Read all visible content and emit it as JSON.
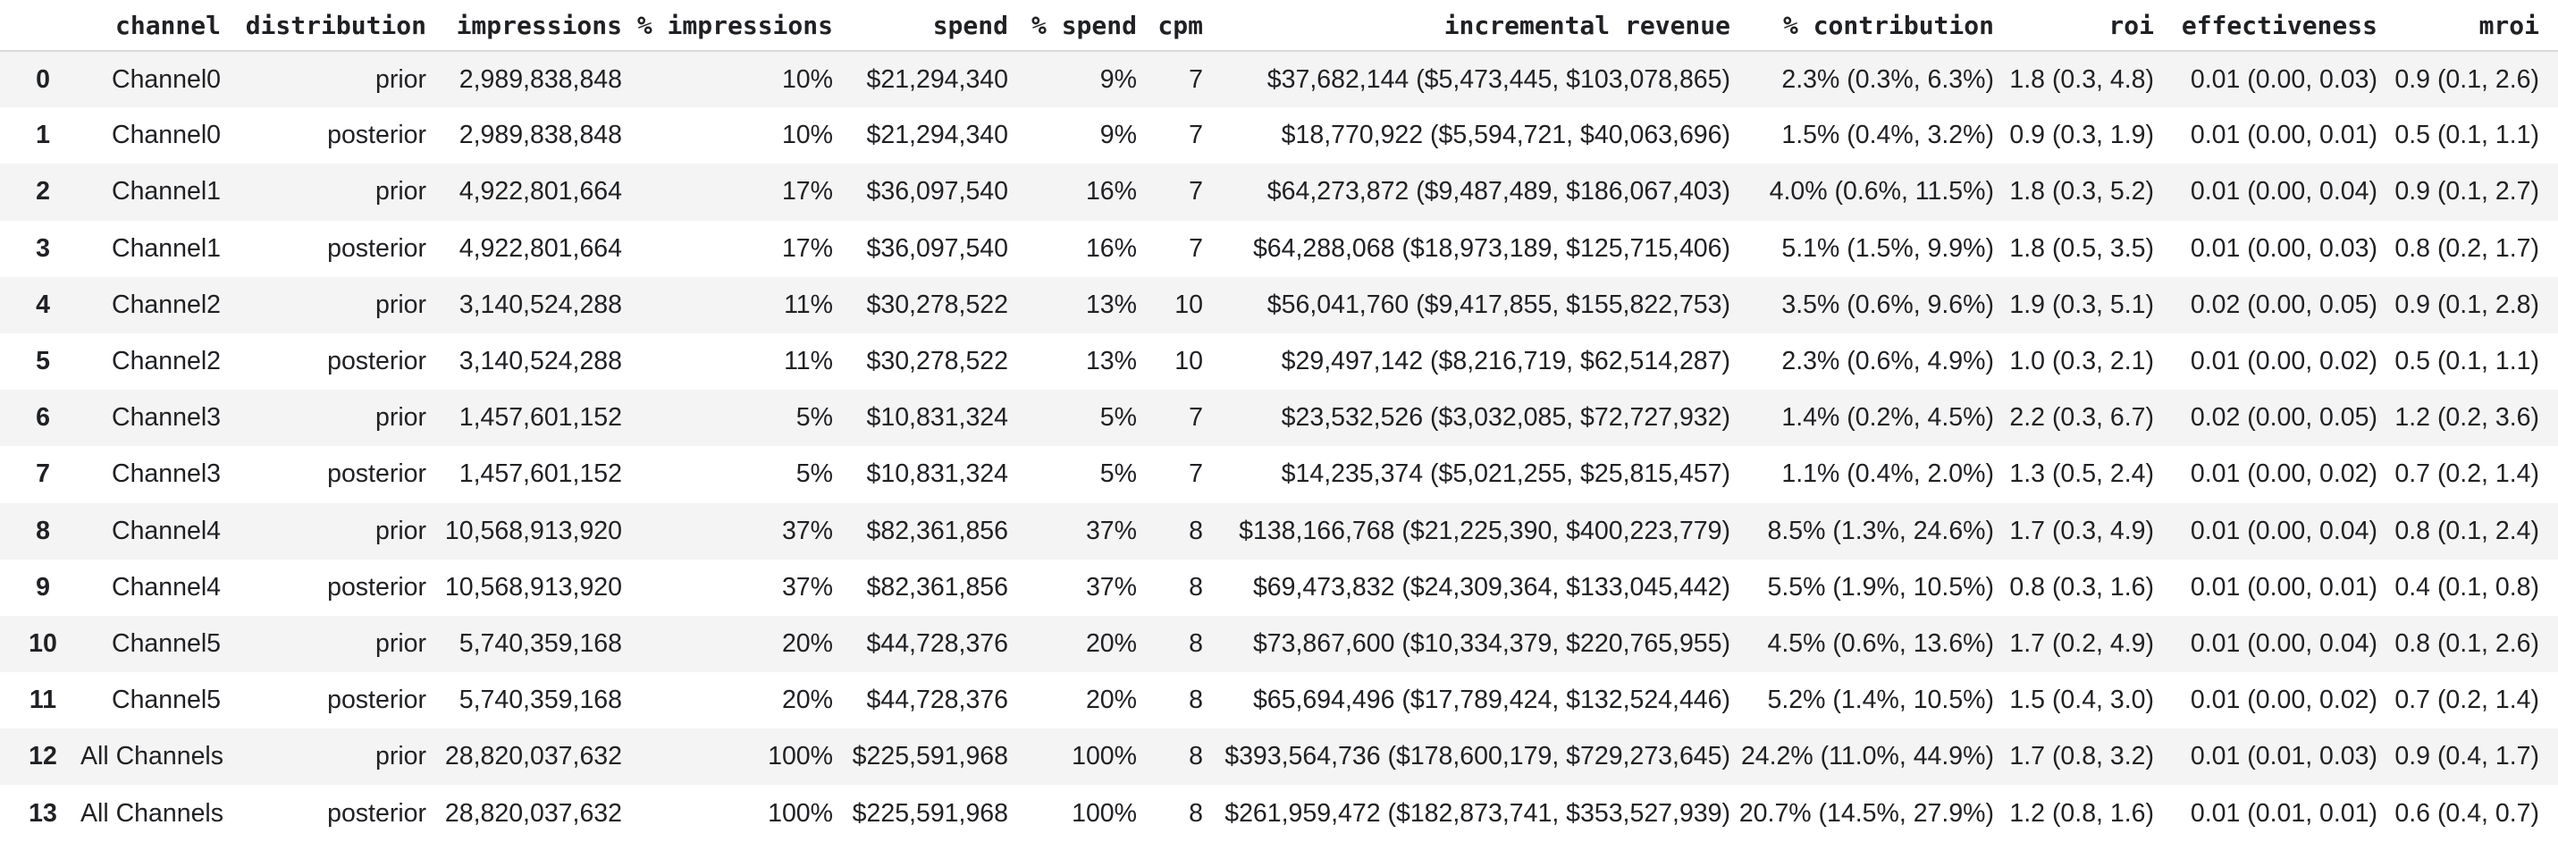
{
  "colors": {
    "stripe": "#f4f4f4",
    "header_border": "#d9d9d9",
    "text": "#202124",
    "background": "#ffffff"
  },
  "table": {
    "index_header": "",
    "column_keys": [
      "channel",
      "distribution",
      "impressions",
      "pct-impressions",
      "spend",
      "pct-spend",
      "cpm",
      "incremental-revenue",
      "pct-contribution",
      "roi",
      "effectiveness",
      "mroi"
    ],
    "columns": [
      "channel",
      "distribution",
      "impressions",
      "% impressions",
      "spend",
      "% spend",
      "cpm",
      "incremental revenue",
      "% contribution",
      "roi",
      "effectiveness",
      "mroi"
    ],
    "rows": [
      {
        "index": "0",
        "cells": [
          "Channel0",
          "prior",
          "2,989,838,848",
          "10%",
          "$21,294,340",
          "9%",
          "7",
          "$37,682,144 ($5,473,445, $103,078,865)",
          "2.3% (0.3%, 6.3%)",
          "1.8 (0.3, 4.8)",
          "0.01 (0.00, 0.03)",
          "0.9 (0.1, 2.6)"
        ]
      },
      {
        "index": "1",
        "cells": [
          "Channel0",
          "posterior",
          "2,989,838,848",
          "10%",
          "$21,294,340",
          "9%",
          "7",
          "$18,770,922 ($5,594,721, $40,063,696)",
          "1.5% (0.4%, 3.2%)",
          "0.9 (0.3, 1.9)",
          "0.01 (0.00, 0.01)",
          "0.5 (0.1, 1.1)"
        ]
      },
      {
        "index": "2",
        "cells": [
          "Channel1",
          "prior",
          "4,922,801,664",
          "17%",
          "$36,097,540",
          "16%",
          "7",
          "$64,273,872 ($9,487,489, $186,067,403)",
          "4.0% (0.6%, 11.5%)",
          "1.8 (0.3, 5.2)",
          "0.01 (0.00, 0.04)",
          "0.9 (0.1, 2.7)"
        ]
      },
      {
        "index": "3",
        "cells": [
          "Channel1",
          "posterior",
          "4,922,801,664",
          "17%",
          "$36,097,540",
          "16%",
          "7",
          "$64,288,068 ($18,973,189, $125,715,406)",
          "5.1% (1.5%, 9.9%)",
          "1.8 (0.5, 3.5)",
          "0.01 (0.00, 0.03)",
          "0.8 (0.2, 1.7)"
        ]
      },
      {
        "index": "4",
        "cells": [
          "Channel2",
          "prior",
          "3,140,524,288",
          "11%",
          "$30,278,522",
          "13%",
          "10",
          "$56,041,760 ($9,417,855, $155,822,753)",
          "3.5% (0.6%, 9.6%)",
          "1.9 (0.3, 5.1)",
          "0.02 (0.00, 0.05)",
          "0.9 (0.1, 2.8)"
        ]
      },
      {
        "index": "5",
        "cells": [
          "Channel2",
          "posterior",
          "3,140,524,288",
          "11%",
          "$30,278,522",
          "13%",
          "10",
          "$29,497,142 ($8,216,719, $62,514,287)",
          "2.3% (0.6%, 4.9%)",
          "1.0 (0.3, 2.1)",
          "0.01 (0.00, 0.02)",
          "0.5 (0.1, 1.1)"
        ]
      },
      {
        "index": "6",
        "cells": [
          "Channel3",
          "prior",
          "1,457,601,152",
          "5%",
          "$10,831,324",
          "5%",
          "7",
          "$23,532,526 ($3,032,085, $72,727,932)",
          "1.4% (0.2%, 4.5%)",
          "2.2 (0.3, 6.7)",
          "0.02 (0.00, 0.05)",
          "1.2 (0.2, 3.6)"
        ]
      },
      {
        "index": "7",
        "cells": [
          "Channel3",
          "posterior",
          "1,457,601,152",
          "5%",
          "$10,831,324",
          "5%",
          "7",
          "$14,235,374 ($5,021,255, $25,815,457)",
          "1.1% (0.4%, 2.0%)",
          "1.3 (0.5, 2.4)",
          "0.01 (0.00, 0.02)",
          "0.7 (0.2, 1.4)"
        ]
      },
      {
        "index": "8",
        "cells": [
          "Channel4",
          "prior",
          "10,568,913,920",
          "37%",
          "$82,361,856",
          "37%",
          "8",
          "$138,166,768 ($21,225,390, $400,223,779)",
          "8.5% (1.3%, 24.6%)",
          "1.7 (0.3, 4.9)",
          "0.01 (0.00, 0.04)",
          "0.8 (0.1, 2.4)"
        ]
      },
      {
        "index": "9",
        "cells": [
          "Channel4",
          "posterior",
          "10,568,913,920",
          "37%",
          "$82,361,856",
          "37%",
          "8",
          "$69,473,832 ($24,309,364, $133,045,442)",
          "5.5% (1.9%, 10.5%)",
          "0.8 (0.3, 1.6)",
          "0.01 (0.00, 0.01)",
          "0.4 (0.1, 0.8)"
        ]
      },
      {
        "index": "10",
        "cells": [
          "Channel5",
          "prior",
          "5,740,359,168",
          "20%",
          "$44,728,376",
          "20%",
          "8",
          "$73,867,600 ($10,334,379, $220,765,955)",
          "4.5% (0.6%, 13.6%)",
          "1.7 (0.2, 4.9)",
          "0.01 (0.00, 0.04)",
          "0.8 (0.1, 2.6)"
        ]
      },
      {
        "index": "11",
        "cells": [
          "Channel5",
          "posterior",
          "5,740,359,168",
          "20%",
          "$44,728,376",
          "20%",
          "8",
          "$65,694,496 ($17,789,424, $132,524,446)",
          "5.2% (1.4%, 10.5%)",
          "1.5 (0.4, 3.0)",
          "0.01 (0.00, 0.02)",
          "0.7 (0.2, 1.4)"
        ]
      },
      {
        "index": "12",
        "cells": [
          "All Channels",
          "prior",
          "28,820,037,632",
          "100%",
          "$225,591,968",
          "100%",
          "8",
          "$393,564,736 ($178,600,179, $729,273,645)",
          "24.2% (11.0%, 44.9%)",
          "1.7 (0.8, 3.2)",
          "0.01 (0.01, 0.03)",
          "0.9 (0.4, 1.7)"
        ]
      },
      {
        "index": "13",
        "cells": [
          "All Channels",
          "posterior",
          "28,820,037,632",
          "100%",
          "$225,591,968",
          "100%",
          "8",
          "$261,959,472 ($182,873,741, $353,527,939)",
          "20.7% (14.5%, 27.9%)",
          "1.2 (0.8, 1.6)",
          "0.01 (0.01, 0.01)",
          "0.6 (0.4, 0.7)"
        ]
      }
    ]
  }
}
